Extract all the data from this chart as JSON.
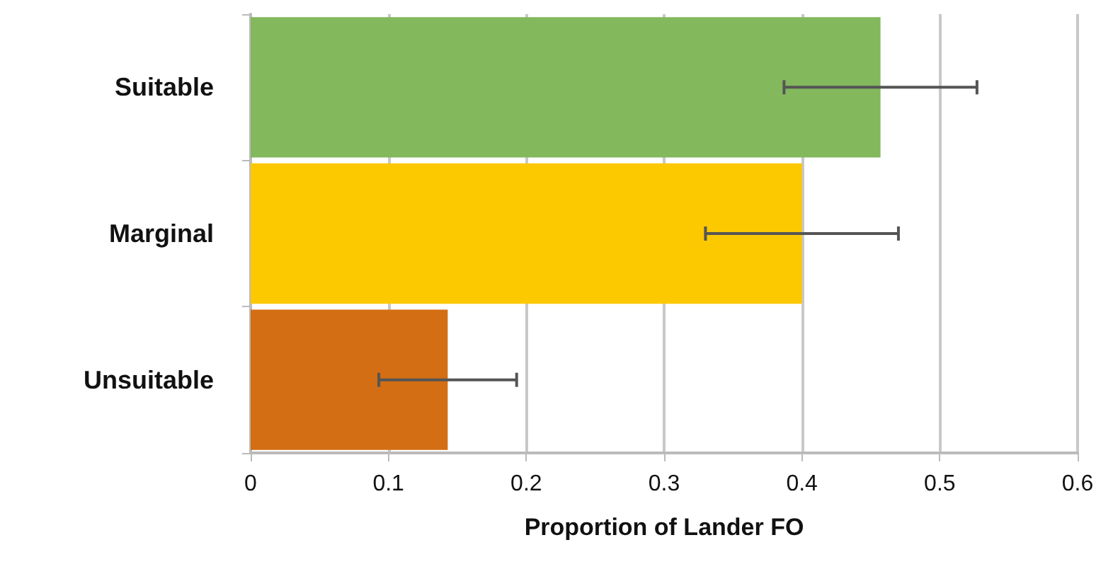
{
  "chart_data": {
    "type": "bar",
    "orientation": "horizontal",
    "xlabel": "Proportion of Lander FO",
    "categories": [
      "Suitable",
      "Marginal",
      "Unsuitable"
    ],
    "values": [
      0.457,
      0.4,
      0.143
    ],
    "errors": [
      0.07,
      0.07,
      0.05
    ],
    "colors": [
      "#83b85d",
      "#fcc800",
      "#d36e14"
    ],
    "xlim": [
      0,
      0.6
    ],
    "xticks": [
      0,
      0.1,
      0.2,
      0.3,
      0.4,
      0.5,
      0.6
    ],
    "grid": "x"
  }
}
